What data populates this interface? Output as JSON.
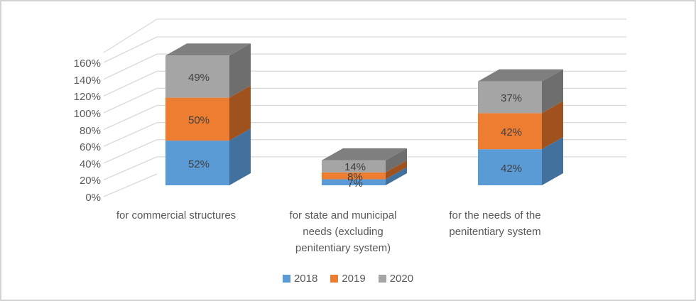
{
  "chart_data": {
    "type": "bar",
    "subtype": "3d-stacked-column",
    "title": "",
    "categories": [
      "for commercial structures",
      "for state and municipal needs (excluding penitentiary system)",
      "for the needs of the penitentiary system"
    ],
    "category_lines": [
      [
        "for commercial structures"
      ],
      [
        "for state and municipal",
        "needs (excluding",
        "penitentiary system)"
      ],
      [
        "for the needs of the",
        "penitentiary system"
      ]
    ],
    "series": [
      {
        "name": "2018",
        "values": [
          52,
          7,
          42
        ],
        "color": "#5B9BD5",
        "side_color": "#41719C",
        "top_color": "#4A7DB0"
      },
      {
        "name": "2019",
        "values": [
          50,
          8,
          42
        ],
        "color": "#ED7D31",
        "side_color": "#A0521E",
        "top_color": "#B85C20"
      },
      {
        "name": "2020",
        "values": [
          49,
          14,
          37
        ],
        "color": "#A5A5A5",
        "side_color": "#6E6E6E",
        "top_color": "#7F7F7F"
      }
    ],
    "value_suffix": "%",
    "y_ticks": [
      "0%",
      "20%",
      "40%",
      "60%",
      "80%",
      "100%",
      "120%",
      "140%",
      "160%"
    ],
    "ylim": [
      0,
      160
    ],
    "grid": true,
    "legend": [
      "2018",
      "2019",
      "2020"
    ],
    "legend_position": "bottom",
    "colors": {
      "grid": "#D9D9D9",
      "axis_text": "#595959",
      "data_label_text": "#404040",
      "frame_border": "#D3D3D3",
      "background": "#FFFFFF"
    }
  }
}
